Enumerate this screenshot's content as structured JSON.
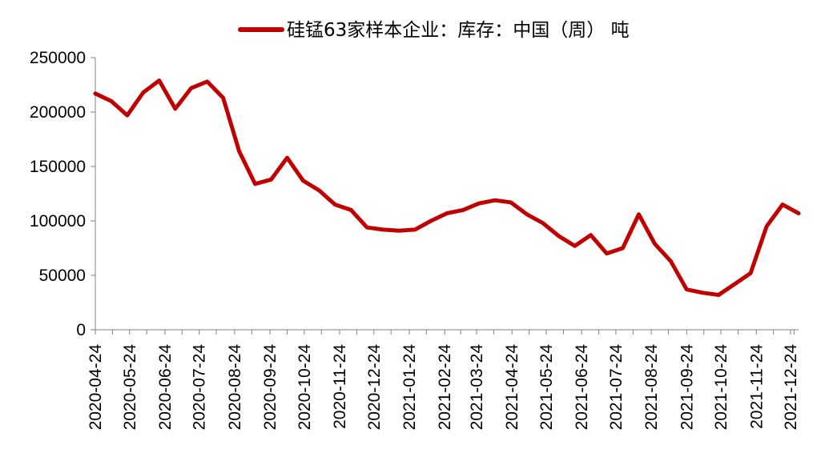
{
  "chart_data": {
    "type": "line",
    "title": "",
    "xlabel": "",
    "ylabel": "",
    "ylim": [
      0,
      250000
    ],
    "yticks": [
      0,
      50000,
      100000,
      150000,
      200000,
      250000
    ],
    "grid": false,
    "legend_position": "top",
    "x_tick_labels": [
      "2020-04-24",
      "2020-05-24",
      "2020-06-24",
      "2020-07-24",
      "2020-08-24",
      "2020-09-24",
      "2020-10-24",
      "2020-11-24",
      "2020-12-24",
      "2021-01-24",
      "2021-02-24",
      "2021-03-24",
      "2021-04-24",
      "2021-05-24",
      "2021-06-24",
      "2021-07-24",
      "2021-08-24",
      "2021-09-24",
      "2021-10-24",
      "2021-11-24",
      "2021-12-24"
    ],
    "series": [
      {
        "name": "硅锰63家样本企业：库存：中国（周） 吨",
        "color": "#C00000",
        "points": [
          [
            "2020-04-24",
            217000
          ],
          [
            "2020-05-08",
            210000
          ],
          [
            "2020-05-22",
            197000
          ],
          [
            "2020-06-05",
            218000
          ],
          [
            "2020-06-19",
            229000
          ],
          [
            "2020-07-03",
            203000
          ],
          [
            "2020-07-17",
            222000
          ],
          [
            "2020-07-31",
            228000
          ],
          [
            "2020-08-14",
            213000
          ],
          [
            "2020-08-28",
            164000
          ],
          [
            "2020-09-11",
            134000
          ],
          [
            "2020-09-25",
            138000
          ],
          [
            "2020-10-09",
            158000
          ],
          [
            "2020-10-23",
            137000
          ],
          [
            "2020-11-06",
            128000
          ],
          [
            "2020-11-20",
            115000
          ],
          [
            "2020-12-04",
            110000
          ],
          [
            "2020-12-18",
            94000
          ],
          [
            "2021-01-01",
            92000
          ],
          [
            "2021-01-15",
            91000
          ],
          [
            "2021-01-29",
            92000
          ],
          [
            "2021-02-12",
            100000
          ],
          [
            "2021-02-26",
            107000
          ],
          [
            "2021-03-12",
            110000
          ],
          [
            "2021-03-26",
            116000
          ],
          [
            "2021-04-09",
            119000
          ],
          [
            "2021-04-23",
            117000
          ],
          [
            "2021-05-07",
            106000
          ],
          [
            "2021-05-21",
            98000
          ],
          [
            "2021-06-04",
            86000
          ],
          [
            "2021-06-18",
            77000
          ],
          [
            "2021-07-02",
            87000
          ],
          [
            "2021-07-16",
            70000
          ],
          [
            "2021-07-30",
            75000
          ],
          [
            "2021-08-13",
            106000
          ],
          [
            "2021-08-27",
            79000
          ],
          [
            "2021-09-10",
            63000
          ],
          [
            "2021-09-24",
            37000
          ],
          [
            "2021-10-08",
            34000
          ],
          [
            "2021-10-22",
            32000
          ],
          [
            "2021-11-05",
            42000
          ],
          [
            "2021-11-19",
            52000
          ],
          [
            "2021-12-03",
            95000
          ],
          [
            "2021-12-17",
            115000
          ],
          [
            "2021-12-31",
            107000
          ]
        ]
      }
    ]
  }
}
